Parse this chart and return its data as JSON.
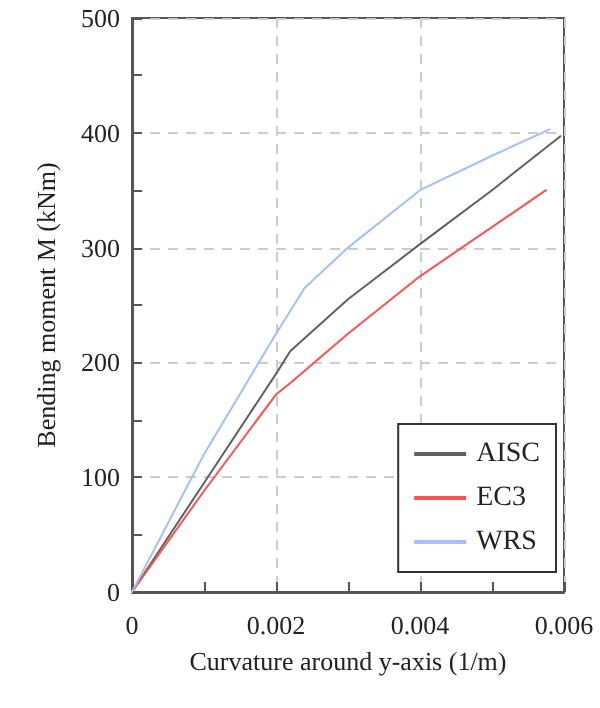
{
  "chart_data": {
    "type": "line",
    "xlabel": "Curvature around y-axis (1/m)",
    "ylabel": "Bending moment M (kNm)",
    "xlim": [
      0,
      0.006
    ],
    "ylim": [
      0,
      500
    ],
    "xticks": [
      0,
      {
        "value": 0.001,
        "label": null
      },
      0.002,
      {
        "value": 0.003,
        "label": null
      },
      0.004,
      {
        "value": 0.005,
        "label": null
      },
      0.006
    ],
    "yticks": [
      0,
      {
        "value": 50,
        "label": null
      },
      100,
      {
        "value": 150,
        "label": null
      },
      200,
      {
        "value": 250,
        "label": null
      },
      300,
      {
        "value": 350,
        "label": null
      },
      400,
      {
        "value": 450,
        "label": null
      },
      500
    ],
    "grid": true,
    "legend": "bottom right",
    "marker": "none",
    "line_style": "solid",
    "series": [
      {
        "name": "AISC",
        "color": "#606060",
        "x": [
          0,
          0.001,
          0.002,
          0.0022,
          0.003,
          0.004,
          0.005,
          0.00595
        ],
        "values": [
          0,
          95,
          190,
          210,
          255,
          303,
          350,
          397
        ]
      },
      {
        "name": "EC3",
        "color": "#ff5050",
        "x": [
          0,
          0.001,
          0.002,
          0.0022,
          0.003,
          0.004,
          0.00575
        ],
        "values": [
          0,
          88,
          172,
          182,
          225,
          275,
          350
        ]
      },
      {
        "name": "WRS",
        "color": "#a0c0ff",
        "x": [
          0,
          0.001,
          0.002,
          0.0024,
          0.003,
          0.004,
          0.005,
          0.0058
        ],
        "values": [
          0,
          120,
          225,
          265,
          300,
          350,
          380,
          403
        ]
      }
    ]
  }
}
